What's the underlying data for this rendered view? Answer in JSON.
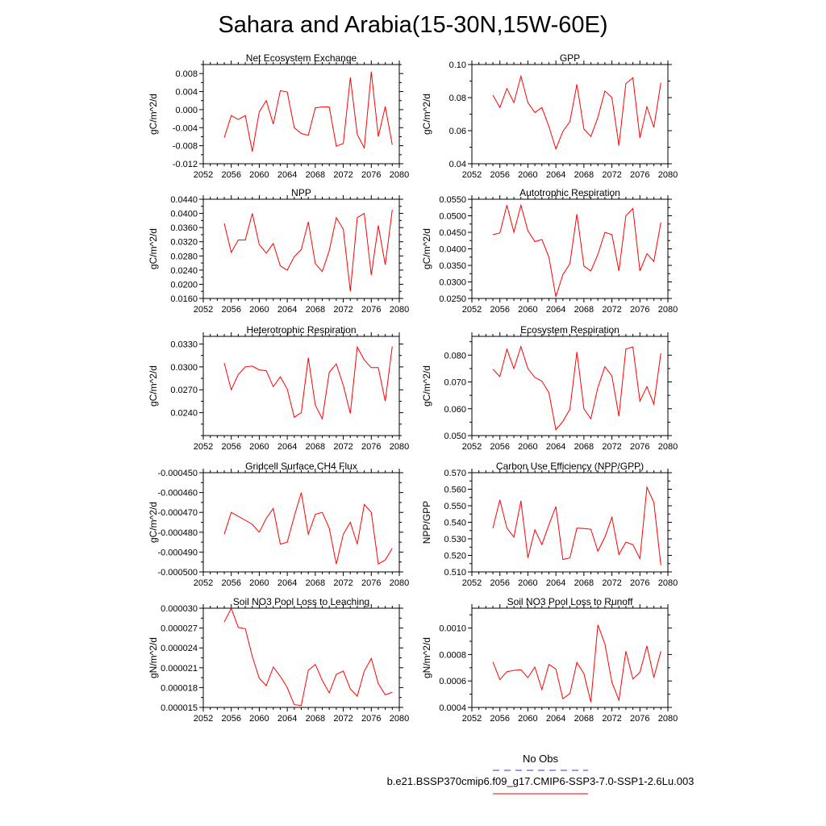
{
  "title": "Sahara and Arabia(15-30N,15W-60E)",
  "colors": {
    "series": "#ff0000",
    "obs": "#3333cc",
    "axis": "#000000"
  },
  "legend": {
    "obs_label": "No Obs",
    "model_label": "b.e21.BSSP370cmip6.f09_g17.CMIP6-SSP3-7.0-SSP1-2.6Lu.003"
  },
  "chart_data": [
    {
      "type": "line",
      "title": "Net Ecosystem Exchange",
      "ylabel": "gC/m^2/d",
      "xlim": [
        2052,
        2080
      ],
      "xticks": [
        "2052",
        "2056",
        "2060",
        "2064",
        "2068",
        "2072",
        "2076",
        "2080"
      ],
      "ylim": [
        -0.012,
        0.01
      ],
      "yticks": [
        "-0.012",
        "-0.008",
        "-0.004",
        "0.000",
        "0.004",
        "0.008"
      ],
      "x": [
        2055,
        2056,
        2057,
        2058,
        2059,
        2060,
        2061,
        2062,
        2063,
        2064,
        2065,
        2066,
        2067,
        2068,
        2069,
        2070,
        2071,
        2072,
        2073,
        2074,
        2075,
        2076,
        2077,
        2078,
        2079
      ],
      "values": [
        -0.0062,
        -0.0013,
        -0.0022,
        -0.0013,
        -0.0093,
        -0.0005,
        0.002,
        -0.0032,
        0.0042,
        0.0039,
        -0.004,
        -0.0053,
        -0.0057,
        0.0004,
        0.0006,
        0.0006,
        -0.0081,
        -0.0075,
        0.0071,
        -0.0055,
        -0.0085,
        0.0084,
        -0.006,
        0.0007,
        -0.0078
      ]
    },
    {
      "type": "line",
      "title": "GPP",
      "ylabel": "gC/m^2/d",
      "xlim": [
        2052,
        2080
      ],
      "xticks": [
        "2052",
        "2056",
        "2060",
        "2064",
        "2068",
        "2072",
        "2076",
        "2080"
      ],
      "ylim": [
        0.04,
        0.1
      ],
      "yticks": [
        "0.04",
        "0.06",
        "0.08",
        "0.10"
      ],
      "x": [
        2055,
        2056,
        2057,
        2058,
        2059,
        2060,
        2061,
        2062,
        2063,
        2064,
        2065,
        2066,
        2067,
        2068,
        2069,
        2070,
        2071,
        2072,
        2073,
        2074,
        2075,
        2076,
        2077,
        2078,
        2079
      ],
      "values": [
        0.0815,
        0.074,
        0.0855,
        0.077,
        0.093,
        0.077,
        0.071,
        0.074,
        0.0625,
        0.049,
        0.0595,
        0.0655,
        0.088,
        0.061,
        0.0565,
        0.068,
        0.084,
        0.08,
        0.051,
        0.0885,
        0.092,
        0.0555,
        0.0745,
        0.062,
        0.089
      ]
    },
    {
      "type": "line",
      "title": "NPP",
      "ylabel": "gC/m^2/d",
      "xlim": [
        2052,
        2080
      ],
      "xticks": [
        "2052",
        "2056",
        "2060",
        "2064",
        "2068",
        "2072",
        "2076",
        "2080"
      ],
      "ylim": [
        0.016,
        0.044
      ],
      "yticks": [
        "0.0160",
        "0.0200",
        "0.0240",
        "0.0280",
        "0.0320",
        "0.0360",
        "0.0400",
        "0.0440"
      ],
      "x": [
        2055,
        2056,
        2057,
        2058,
        2059,
        2060,
        2061,
        2062,
        2063,
        2064,
        2065,
        2066,
        2067,
        2068,
        2069,
        2070,
        2071,
        2072,
        2073,
        2074,
        2075,
        2076,
        2077,
        2078,
        2079
      ],
      "values": [
        0.0372,
        0.029,
        0.0325,
        0.0325,
        0.04,
        0.0312,
        0.0288,
        0.0315,
        0.0252,
        0.024,
        0.0278,
        0.0298,
        0.0376,
        0.0258,
        0.0236,
        0.0295,
        0.0388,
        0.0355,
        0.018,
        0.0388,
        0.04,
        0.0226,
        0.0366,
        0.0255,
        0.041
      ]
    },
    {
      "type": "line",
      "title": "Autotrophic Respiration",
      "ylabel": "gC/m^2/d",
      "xlim": [
        2052,
        2080
      ],
      "xticks": [
        "2052",
        "2056",
        "2060",
        "2064",
        "2068",
        "2072",
        "2076",
        "2080"
      ],
      "ylim": [
        0.025,
        0.055
      ],
      "yticks": [
        "0.0250",
        "0.0300",
        "0.0350",
        "0.0400",
        "0.0450",
        "0.0500",
        "0.0550"
      ],
      "x": [
        2055,
        2056,
        2057,
        2058,
        2059,
        2060,
        2061,
        2062,
        2063,
        2064,
        2065,
        2066,
        2067,
        2068,
        2069,
        2070,
        2071,
        2072,
        2073,
        2074,
        2075,
        2076,
        2077,
        2078,
        2079
      ],
      "values": [
        0.0443,
        0.0448,
        0.0532,
        0.045,
        0.0532,
        0.0455,
        0.0422,
        0.0428,
        0.0375,
        0.0255,
        0.0322,
        0.0355,
        0.0505,
        0.0348,
        0.0333,
        0.0383,
        0.045,
        0.0443,
        0.0333,
        0.05,
        0.0522,
        0.0333,
        0.0385,
        0.0362,
        0.048
      ]
    },
    {
      "type": "line",
      "title": "Heterotrophic Respiration",
      "ylabel": "gC/m^2/d",
      "xlim": [
        2052,
        2080
      ],
      "xticks": [
        "2052",
        "2056",
        "2060",
        "2064",
        "2068",
        "2072",
        "2076",
        "2080"
      ],
      "ylim": [
        0.021,
        0.034
      ],
      "yticks": [
        "0.0240",
        "0.0270",
        "0.0300",
        "0.0330"
      ],
      "x": [
        2055,
        2056,
        2057,
        2058,
        2059,
        2060,
        2061,
        2062,
        2063,
        2064,
        2065,
        2066,
        2067,
        2068,
        2069,
        2070,
        2071,
        2072,
        2073,
        2074,
        2075,
        2076,
        2077,
        2078,
        2079
      ],
      "values": [
        0.0305,
        0.027,
        0.029,
        0.03,
        0.0301,
        0.0296,
        0.0295,
        0.0274,
        0.0287,
        0.0271,
        0.0234,
        0.024,
        0.0312,
        0.025,
        0.0232,
        0.0293,
        0.0304,
        0.0276,
        0.0239,
        0.0326,
        0.0309,
        0.0299,
        0.0299,
        0.0255,
        0.0327
      ]
    },
    {
      "type": "line",
      "title": "Ecosystem Respiration",
      "ylabel": "gC/m^2/d",
      "xlim": [
        2052,
        2080
      ],
      "xticks": [
        "2052",
        "2056",
        "2060",
        "2064",
        "2068",
        "2072",
        "2076",
        "2080"
      ],
      "ylim": [
        0.05,
        0.087
      ],
      "yticks": [
        "0.050",
        "0.060",
        "0.070",
        "0.080"
      ],
      "x": [
        2055,
        2056,
        2057,
        2058,
        2059,
        2060,
        2061,
        2062,
        2063,
        2064,
        2065,
        2066,
        2067,
        2068,
        2069,
        2070,
        2071,
        2072,
        2073,
        2074,
        2075,
        2076,
        2077,
        2078,
        2079
      ],
      "values": [
        0.0748,
        0.072,
        0.0822,
        0.075,
        0.0832,
        0.075,
        0.0717,
        0.0703,
        0.066,
        0.0522,
        0.0553,
        0.0598,
        0.0812,
        0.06,
        0.0563,
        0.068,
        0.0757,
        0.0722,
        0.0572,
        0.0823,
        0.083,
        0.0628,
        0.0683,
        0.0617,
        0.0807
      ]
    },
    {
      "type": "line",
      "title": "Gridcell Surface CH4 Flux",
      "ylabel": "gC/m^2/d",
      "xlim": [
        2052,
        2080
      ],
      "xticks": [
        "2052",
        "2056",
        "2060",
        "2064",
        "2068",
        "2072",
        "2076",
        "2080"
      ],
      "ylim": [
        -0.0005,
        -0.00045
      ],
      "yticks": [
        "-0.000500",
        "-0.000490",
        "-0.000480",
        "-0.000470",
        "-0.000460",
        "-0.000450"
      ],
      "x": [
        2055,
        2056,
        2057,
        2058,
        2059,
        2060,
        2061,
        2062,
        2063,
        2064,
        2065,
        2066,
        2067,
        2068,
        2069,
        2070,
        2071,
        2072,
        2073,
        2074,
        2075,
        2076,
        2077,
        2078,
        2079
      ],
      "values": [
        -0.000481,
        -0.00047,
        -0.000472,
        -0.000474,
        -0.000476,
        -0.00048,
        -0.000473,
        -0.000468,
        -0.000486,
        -0.000485,
        -0.000472,
        -0.00046,
        -0.000481,
        -0.000471,
        -0.00047,
        -0.000478,
        -0.000496,
        -0.000481,
        -0.000475,
        -0.000486,
        -0.000466,
        -0.00047,
        -0.000496,
        -0.000494,
        -0.000488
      ]
    },
    {
      "type": "line",
      "title": "Carbon Use Efficiency (NPP/GPP)",
      "ylabel": "NPP/GPP",
      "xlim": [
        2052,
        2080
      ],
      "xticks": [
        "2052",
        "2056",
        "2060",
        "2064",
        "2068",
        "2072",
        "2076",
        "2080"
      ],
      "ylim": [
        0.51,
        0.57
      ],
      "yticks": [
        "0.510",
        "0.520",
        "0.530",
        "0.540",
        "0.550",
        "0.560",
        "0.570"
      ],
      "x": [
        2055,
        2056,
        2057,
        2058,
        2059,
        2060,
        2061,
        2062,
        2063,
        2064,
        2065,
        2066,
        2067,
        2068,
        2069,
        2070,
        2071,
        2072,
        2073,
        2074,
        2075,
        2076,
        2077,
        2078,
        2079
      ],
      "values": [
        0.5365,
        0.5535,
        0.5365,
        0.531,
        0.553,
        0.5185,
        0.5355,
        0.5265,
        0.5385,
        0.5495,
        0.5175,
        0.5185,
        0.5365,
        0.5362,
        0.5358,
        0.5225,
        0.531,
        0.543,
        0.5205,
        0.528,
        0.5265,
        0.518,
        0.5612,
        0.552,
        0.514
      ]
    },
    {
      "type": "line",
      "title": "Soil NO3 Pool Loss to Leaching",
      "ylabel": "gN/m^2/d",
      "xlim": [
        2052,
        2080
      ],
      "xticks": [
        "2052",
        "2056",
        "2060",
        "2064",
        "2068",
        "2072",
        "2076",
        "2080"
      ],
      "ylim": [
        1.5e-05,
        3e-05
      ],
      "yticks": [
        "0.000015",
        "0.000018",
        "0.000021",
        "0.000024",
        "0.000027",
        "0.000030"
      ],
      "x": [
        2055,
        2056,
        2057,
        2058,
        2059,
        2060,
        2061,
        2062,
        2063,
        2064,
        2065,
        2066,
        2067,
        2068,
        2069,
        2070,
        2071,
        2072,
        2073,
        2074,
        2075,
        2076,
        2077,
        2078,
        2079
      ],
      "values": [
        2.79e-05,
        3e-05,
        2.71e-05,
        2.69e-05,
        2.27e-05,
        1.94e-05,
        1.83e-05,
        2.11e-05,
        1.97e-05,
        1.8e-05,
        1.54e-05,
        1.53e-05,
        2.06e-05,
        2.15e-05,
        1.91e-05,
        1.72e-05,
        2e-05,
        2.05e-05,
        1.78e-05,
        1.67e-05,
        2.05e-05,
        2.24e-05,
        1.86e-05,
        1.69e-05,
        1.73e-05
      ]
    },
    {
      "type": "line",
      "title": "Soil NO3 Pool Loss to Runoff",
      "ylabel": "gN/m^2/d",
      "xlim": [
        2052,
        2080
      ],
      "xticks": [
        "2052",
        "2056",
        "2060",
        "2064",
        "2068",
        "2072",
        "2076",
        "2080"
      ],
      "ylim": [
        0.0004,
        0.00115
      ],
      "yticks": [
        "0.0004",
        "0.0006",
        "0.0008",
        "0.0010"
      ],
      "x": [
        2055,
        2056,
        2057,
        2058,
        2059,
        2060,
        2061,
        2062,
        2063,
        2064,
        2065,
        2066,
        2067,
        2068,
        2069,
        2070,
        2071,
        2072,
        2073,
        2074,
        2075,
        2076,
        2077,
        2078,
        2079
      ],
      "values": [
        0.000745,
        0.00061,
        0.00067,
        0.00068,
        0.000685,
        0.000625,
        0.000705,
        0.000535,
        0.000725,
        0.00069,
        0.000465,
        0.000505,
        0.00074,
        0.000655,
        0.00044,
        0.001025,
        0.00088,
        0.00059,
        0.000455,
        0.000825,
        0.000615,
        0.000665,
        0.000865,
        0.000625,
        0.000825
      ]
    }
  ]
}
